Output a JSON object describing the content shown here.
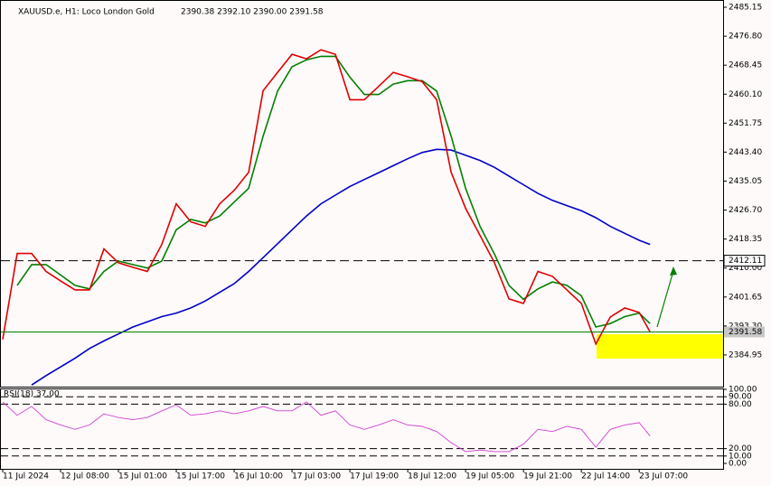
{
  "chart_data": [
    {
      "type": "line",
      "title": "XAUUSD.e, H1: Loco London Gold",
      "subtitle": "2390.38 2392.10 2390.00 2391.58",
      "x": [
        0,
        1,
        2,
        3,
        4,
        5,
        6,
        7,
        8,
        9,
        10,
        11,
        12,
        13,
        14,
        15,
        16,
        17,
        18,
        19,
        20,
        21,
        22,
        23,
        24,
        25,
        26,
        27,
        28,
        29,
        30,
        31,
        32,
        33,
        34,
        35,
        36,
        37,
        38,
        39,
        40,
        41,
        42,
        43,
        44,
        44.75
      ],
      "xlim": [
        0,
        49.8
      ],
      "xticks": [
        {
          "value": 0,
          "label": "11 Jul 2024"
        },
        {
          "value": 4,
          "label": "12 Jul 08:00"
        },
        {
          "value": 8,
          "label": "15 Jul 01:00"
        },
        {
          "value": 12,
          "label": "15 Jul 17:00"
        },
        {
          "value": 16,
          "label": "16 Jul 10:00"
        },
        {
          "value": 20,
          "label": "17 Jul 03:00"
        },
        {
          "value": 24,
          "label": "17 Jul 19:00"
        },
        {
          "value": 28,
          "label": "18 Jul 12:00"
        },
        {
          "value": 32,
          "label": "19 Jul 05:00"
        },
        {
          "value": 36,
          "label": "19 Jul 21:00"
        },
        {
          "value": 40,
          "label": "22 Jul 14:00"
        },
        {
          "value": 44,
          "label": "23 Jul 07:00"
        }
      ],
      "ylim": [
        2375.82,
        2487.24
      ],
      "yticks": [
        2485.15,
        {
          "value": 2476.8,
          "label": "2476.80"
        },
        2468.45,
        {
          "value": 2460.1,
          "label": "2460.10"
        },
        2451.75,
        {
          "value": 2443.4,
          "label": "2443.40"
        },
        2435.05,
        {
          "value": 2426.7,
          "label": "2426.70"
        },
        2418.35,
        {
          "value": 2410,
          "label": "2410.00"
        },
        2401.65,
        {
          "value": 2393.3,
          "label": "2393.30"
        },
        2384.95
      ],
      "level": 2412.11,
      "current_price": 2391.58,
      "series": [
        {
          "color": "#0000c8",
          "values": [
            null,
            null,
            2376.3,
            2379,
            2381.5,
            2384,
            2386.8,
            2389,
            2391,
            2393,
            2394.5,
            2396,
            2397,
            2398.5,
            2400.5,
            2403,
            2405.5,
            2409,
            2413,
            2417,
            2421,
            2425,
            2428.5,
            2431,
            2433.5,
            2435.5,
            2437.5,
            2439.5,
            2441.5,
            2443.3,
            2444.2,
            2444,
            2442.5,
            2441,
            2439,
            2436.5,
            2434,
            2431.5,
            2429.5,
            2428,
            2426.5,
            2424.5,
            2422,
            2420,
            2418,
            2416.8
          ]
        },
        {
          "color": "#008000",
          "values": [
            null,
            2405,
            2411,
            2411,
            2408,
            2405,
            2404,
            2409,
            2412,
            2411,
            2410,
            2412,
            2421,
            2424,
            2423,
            2425,
            2429,
            2433,
            2448,
            2461,
            2468,
            2470,
            2471,
            2471,
            2465,
            2460,
            2460,
            2463,
            2464,
            2464,
            2461,
            2448,
            2433,
            2422,
            2414,
            2405,
            2401,
            2404,
            2406,
            2405,
            2402,
            2393,
            2394,
            2396,
            2397,
            2394
          ]
        },
        {
          "color": "#e00000",
          "values": [
            2389.4,
            2414.2,
            2414.2,
            2409.0,
            2406.3,
            2403.7,
            2403.7,
            2415.5,
            2411.5,
            2410.2,
            2409.0,
            2416.8,
            2428.5,
            2423.3,
            2422.0,
            2428.5,
            2432.4,
            2437.6,
            2461.1,
            2466.4,
            2471.6,
            2470.3,
            2472.9,
            2471.6,
            2458.5,
            2458.5,
            2462.4,
            2466.4,
            2465.1,
            2463.7,
            2458.5,
            2437.6,
            2427.2,
            2419.4,
            2411.5,
            2401.1,
            2399.8,
            2409.0,
            2407.6,
            2403.7,
            2399.8,
            2388.1,
            2395.9,
            2398.5,
            2397.2,
            2391.58
          ]
        }
      ]
    },
    {
      "type": "line",
      "title": "RSI(18) 37.00",
      "x": [
        0,
        1,
        2,
        3,
        4,
        5,
        6,
        7,
        8,
        9,
        10,
        11,
        12,
        13,
        14,
        15,
        16,
        17,
        18,
        19,
        20,
        21,
        22,
        23,
        24,
        25,
        26,
        27,
        28,
        29,
        30,
        31,
        32,
        33,
        34,
        35,
        36,
        37,
        38,
        39,
        40,
        41,
        42,
        43,
        44,
        44.75
      ],
      "xlim": [
        0,
        49.8
      ],
      "ylim": [
        0,
        100
      ],
      "yticks": [
        {
          "value": 100,
          "label": "100.00"
        },
        {
          "value": 90,
          "label": "90.00"
        },
        {
          "value": 80,
          "label": "80.00"
        },
        {
          "value": 20,
          "label": "20.00"
        },
        {
          "value": 10,
          "label": "10.00"
        },
        {
          "value": 0,
          "label": "0.00"
        }
      ],
      "series": [
        {
          "color": "#d040d0",
          "values": [
            83,
            65,
            77,
            59,
            52,
            46,
            52,
            67,
            62,
            59,
            62,
            71,
            79,
            65,
            67,
            71,
            67,
            71,
            77,
            71,
            71,
            83,
            65,
            71,
            52,
            46,
            52,
            59,
            52,
            50,
            43,
            28,
            16,
            18,
            16,
            16,
            26,
            46,
            43,
            50,
            46,
            22,
            46,
            52,
            55,
            37
          ]
        }
      ]
    }
  ]
}
